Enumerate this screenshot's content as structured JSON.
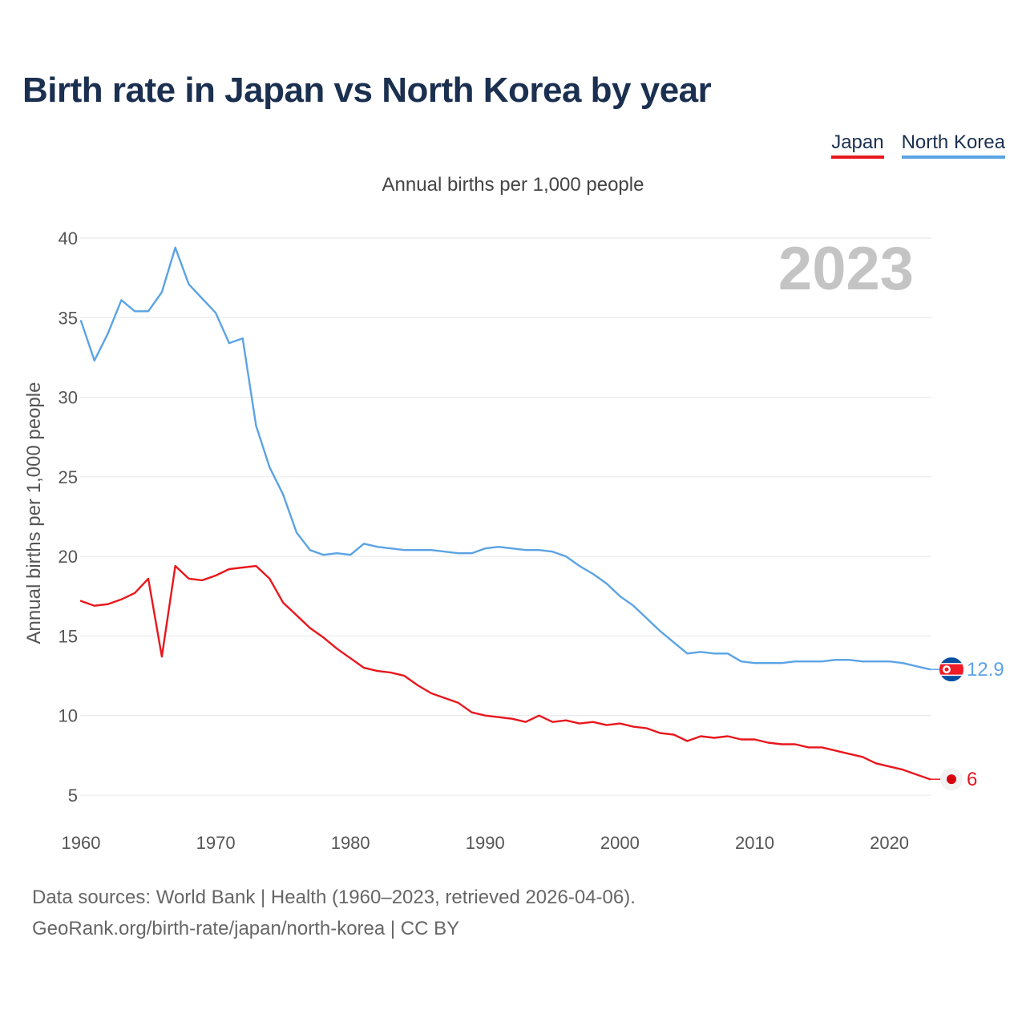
{
  "title": "Birth rate in Japan vs North Korea by year",
  "legend": {
    "items": [
      {
        "label": "Japan",
        "color": "#e8171d"
      },
      {
        "label": "North Korea",
        "color": "#5ba3e5"
      }
    ]
  },
  "subtitle": "Annual births per 1,000 people",
  "year_watermark": "2023",
  "footer": {
    "line1": "Data sources: World Bank | Health (1960–2023, retrieved 2026-04-06).",
    "line2": "GeoRank.org/birth-rate/japan/north-korea | CC BY"
  },
  "chart_data": {
    "type": "line",
    "title": "Birth rate in Japan vs North Korea by year",
    "xlabel": "",
    "ylabel": "Annual births per 1,000 people",
    "xlim": [
      1960,
      2023
    ],
    "ylim": [
      4,
      41
    ],
    "xticks": [
      1960,
      1970,
      1980,
      1990,
      2000,
      2010,
      2020
    ],
    "yticks": [
      5,
      10,
      15,
      20,
      25,
      30,
      35,
      40
    ],
    "grid": true,
    "x": [
      1960,
      1961,
      1962,
      1963,
      1964,
      1965,
      1966,
      1967,
      1968,
      1969,
      1970,
      1971,
      1972,
      1973,
      1974,
      1975,
      1976,
      1977,
      1978,
      1979,
      1980,
      1981,
      1982,
      1983,
      1984,
      1985,
      1986,
      1987,
      1988,
      1989,
      1990,
      1991,
      1992,
      1993,
      1994,
      1995,
      1996,
      1997,
      1998,
      1999,
      2000,
      2001,
      2002,
      2003,
      2004,
      2005,
      2006,
      2007,
      2008,
      2009,
      2010,
      2011,
      2012,
      2013,
      2014,
      2015,
      2016,
      2017,
      2018,
      2019,
      2020,
      2021,
      2022,
      2023
    ],
    "series": [
      {
        "name": "North Korea",
        "color": "#5ba3e5",
        "end_label": "12.9",
        "values": [
          34.8,
          32.3,
          34.0,
          36.1,
          35.4,
          35.4,
          36.6,
          39.4,
          37.1,
          36.2,
          35.3,
          33.4,
          33.7,
          28.2,
          25.6,
          23.9,
          21.5,
          20.4,
          20.1,
          20.2,
          20.1,
          20.8,
          20.6,
          20.5,
          20.4,
          20.4,
          20.4,
          20.3,
          20.2,
          20.2,
          20.5,
          20.6,
          20.5,
          20.4,
          20.4,
          20.3,
          20.0,
          19.4,
          18.9,
          18.3,
          17.5,
          16.9,
          16.1,
          15.3,
          14.6,
          13.9,
          14.0,
          13.9,
          13.9,
          13.4,
          13.3,
          13.3,
          13.3,
          13.4,
          13.4,
          13.4,
          13.5,
          13.5,
          13.4,
          13.4,
          13.4,
          13.3,
          13.1,
          12.9
        ]
      },
      {
        "name": "Japan",
        "color": "#e8171d",
        "end_label": "6",
        "values": [
          17.2,
          16.9,
          17.0,
          17.3,
          17.7,
          18.6,
          13.7,
          19.4,
          18.6,
          18.5,
          18.8,
          19.2,
          19.3,
          19.4,
          18.6,
          17.1,
          16.3,
          15.5,
          14.9,
          14.2,
          13.6,
          13.0,
          12.8,
          12.7,
          12.5,
          11.9,
          11.4,
          11.1,
          10.8,
          10.2,
          10.0,
          9.9,
          9.8,
          9.6,
          10.0,
          9.6,
          9.7,
          9.5,
          9.6,
          9.4,
          9.5,
          9.3,
          9.2,
          8.9,
          8.8,
          8.4,
          8.7,
          8.6,
          8.7,
          8.5,
          8.5,
          8.3,
          8.2,
          8.2,
          8.0,
          8.0,
          7.8,
          7.6,
          7.4,
          7.0,
          6.8,
          6.6,
          6.3,
          6.0
        ]
      }
    ]
  }
}
